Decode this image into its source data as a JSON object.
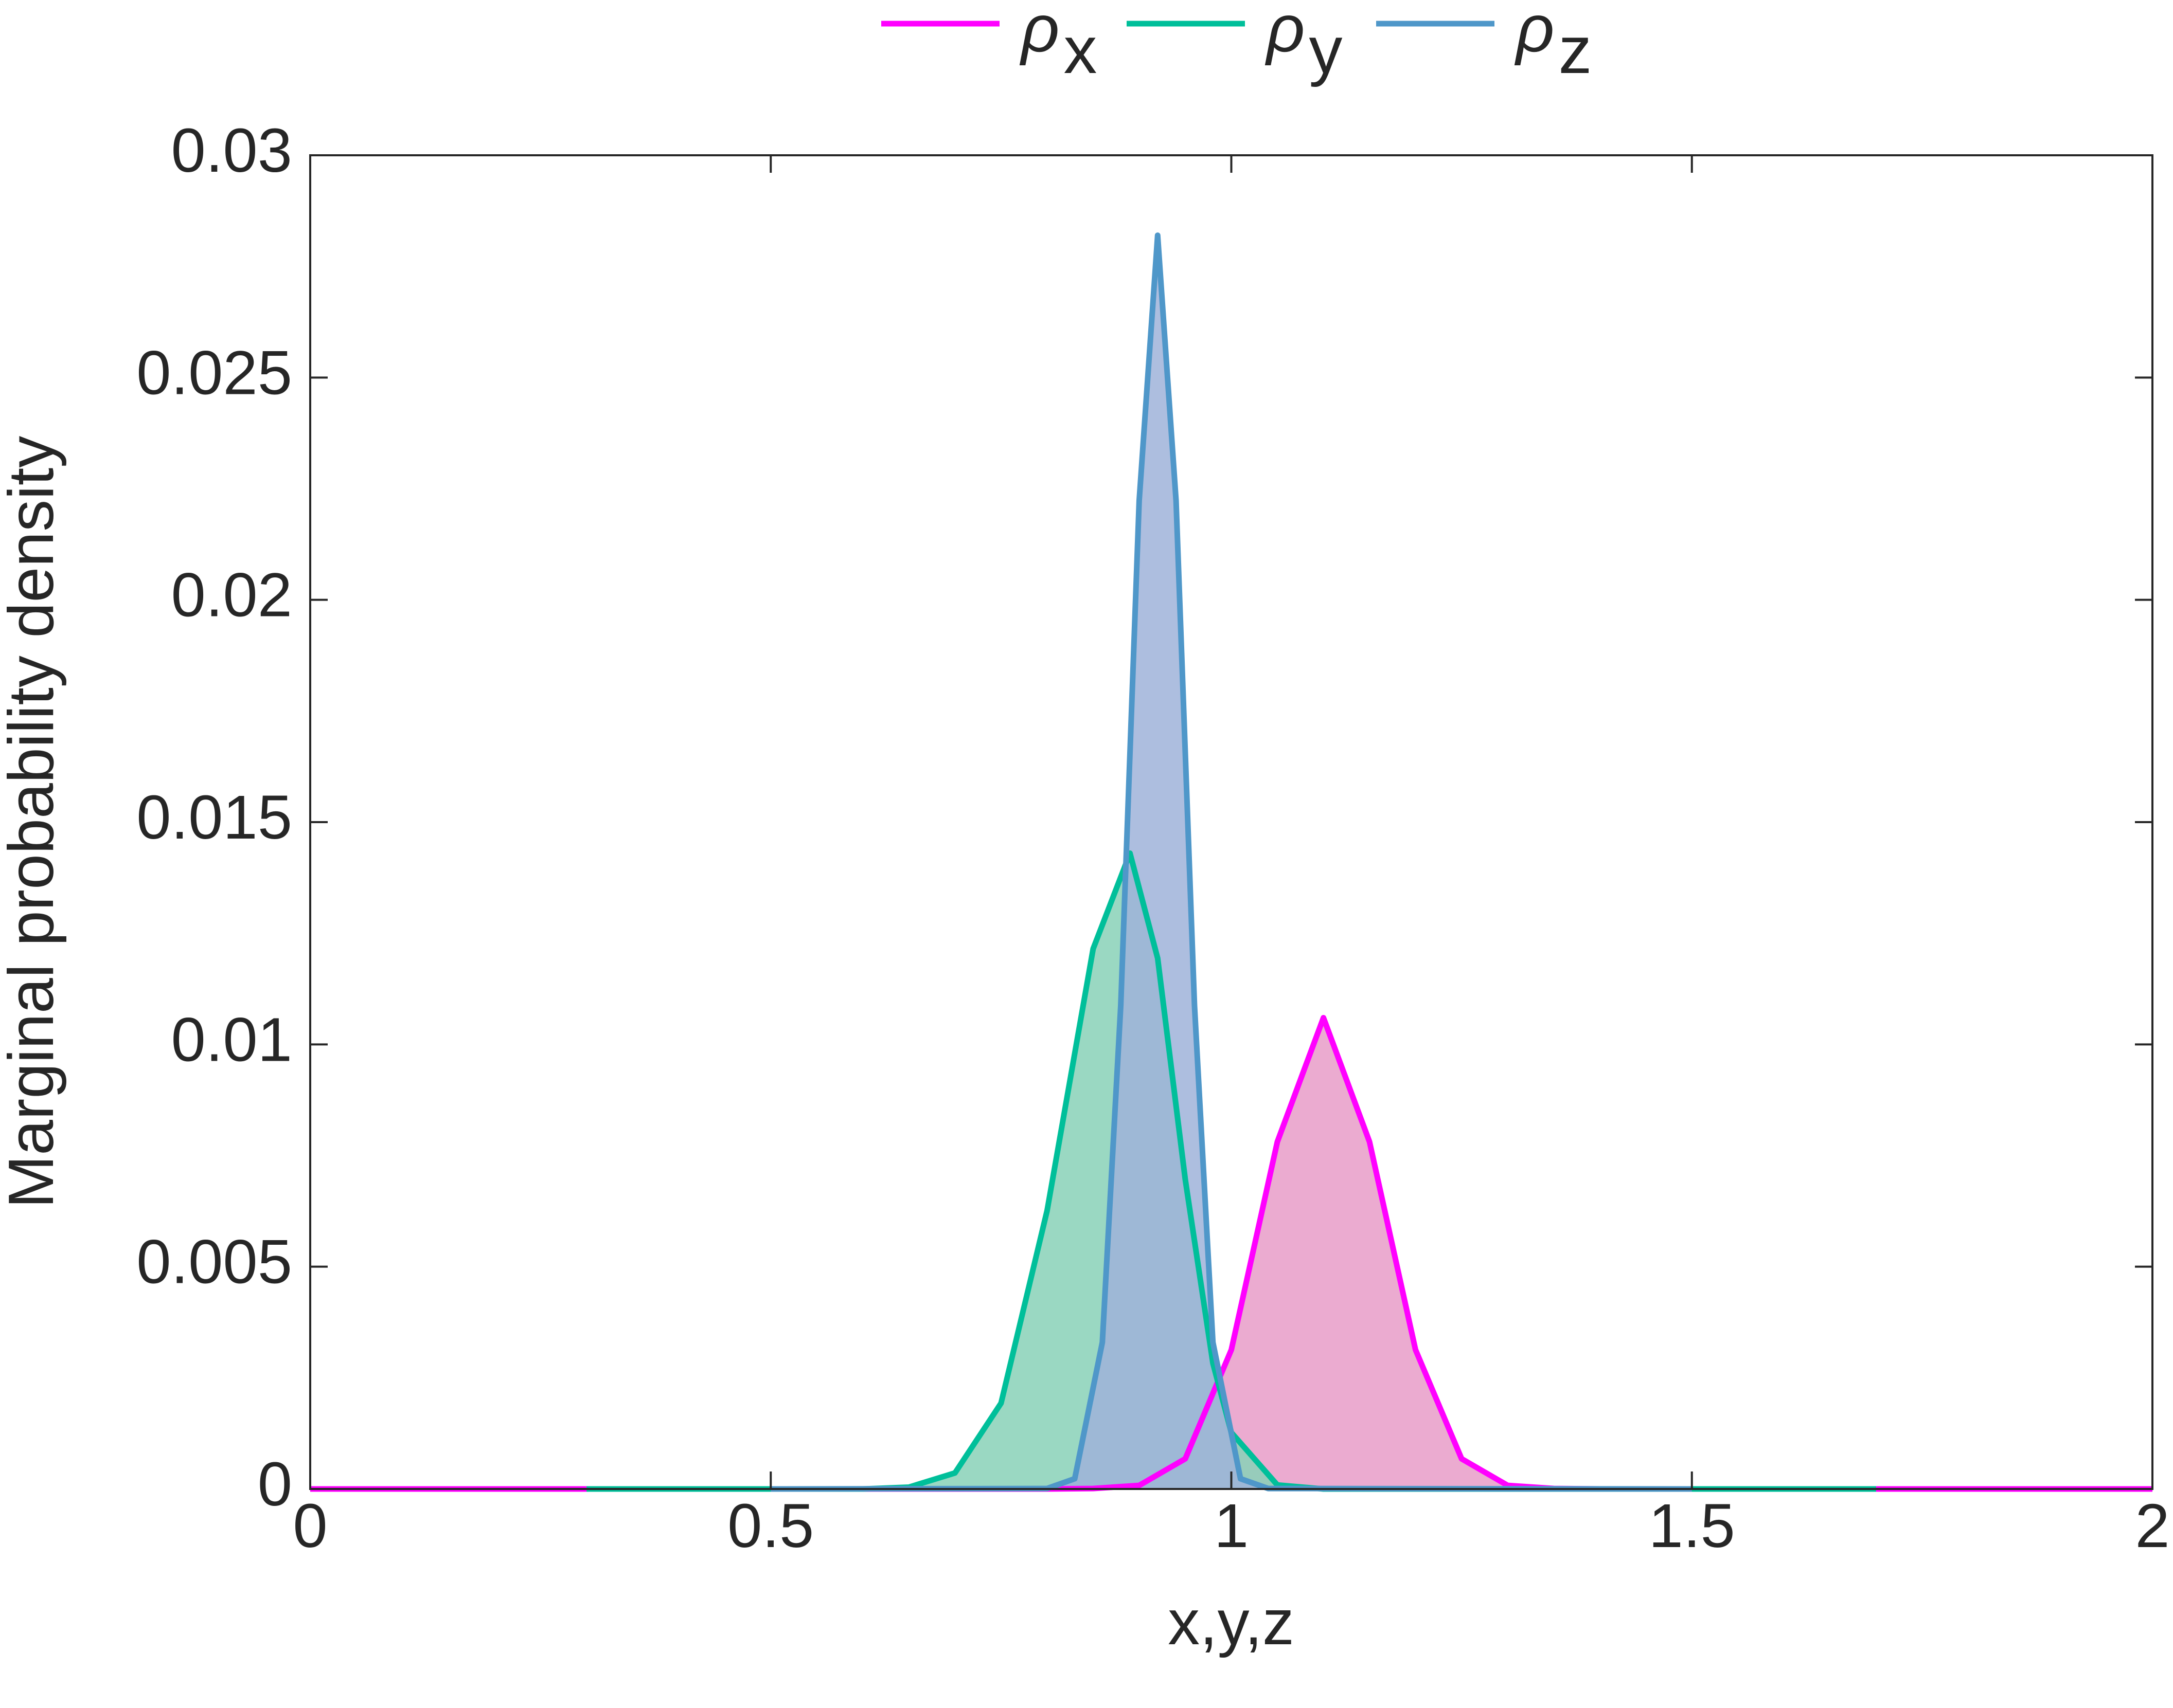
{
  "chart_data": {
    "type": "line",
    "xlabel": "x,y,z",
    "ylabel": "Marginal probability density",
    "xlim": [
      0,
      2
    ],
    "ylim": [
      0,
      0.03
    ],
    "xticks": [
      0,
      0.5,
      1,
      1.5,
      2
    ],
    "yticks": [
      0,
      0.005,
      0.01,
      0.015,
      0.02,
      0.025,
      0.03
    ],
    "legend": "top",
    "series": [
      {
        "name": "ρx",
        "color": "#ff00ff",
        "fill": "#e89cc8",
        "x": [
          0,
          0.8,
          0.85,
          0.9,
          0.95,
          1.0,
          1.05,
          1.1,
          1.15,
          1.2,
          1.25,
          1.3,
          1.35,
          1.4,
          2
        ],
        "values": [
          0,
          0,
          1e-05,
          8e-05,
          0.00068,
          0.00313,
          0.00781,
          0.0106,
          0.00781,
          0.00313,
          0.00068,
          8e-05,
          1e-05,
          0,
          0
        ]
      },
      {
        "name": "ρy",
        "color": "#00bf9a",
        "fill": "#88d1b7",
        "x": [
          0.3,
          0.6,
          0.65,
          0.7,
          0.75,
          0.8,
          0.85,
          0.89,
          0.92,
          0.95,
          0.98,
          1.0,
          1.05,
          1.1,
          1.7
        ],
        "values": [
          0,
          0,
          4e-05,
          0.00036,
          0.00193,
          0.00626,
          0.01215,
          0.0143,
          0.01194,
          0.00696,
          0.00283,
          0.00127,
          9e-05,
          0,
          0
        ]
      },
      {
        "name": "ρz",
        "color": "#4f97c9",
        "fill": "#9fb3d9",
        "x": [
          0.5,
          0.8,
          0.83,
          0.86,
          0.88,
          0.9,
          0.92,
          0.94,
          0.96,
          0.98,
          1.01,
          1.04,
          1.5
        ],
        "values": [
          0,
          1e-05,
          0.00023,
          0.0033,
          0.01088,
          0.02223,
          0.0282,
          0.02223,
          0.01088,
          0.0033,
          0.00023,
          1e-05,
          0
        ]
      }
    ]
  }
}
